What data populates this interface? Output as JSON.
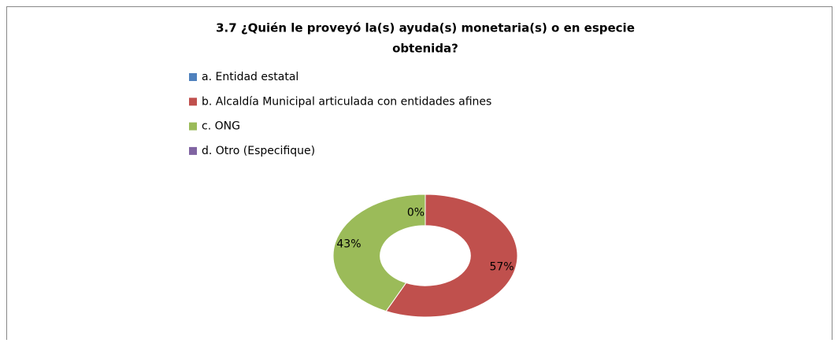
{
  "chart_data": {
    "type": "donut",
    "title": [
      "3.7 ¿Quién le proveyó la(s) ayuda(s)  monetaria(s) o en especie",
      "obtenida?"
    ],
    "categories": [
      "a. Entidad estatal",
      "b. Alcaldía Municipal articulada con entidades afines",
      "c. ONG",
      "d. Otro (Especifique)"
    ],
    "values": [
      0,
      57,
      43,
      0
    ],
    "value_labels": [
      null,
      "57%",
      "43%",
      "0%"
    ],
    "colors": [
      "#4f81bd",
      "#c0504d",
      "#9bbb59",
      "#8064a2"
    ],
    "legend": "top"
  }
}
